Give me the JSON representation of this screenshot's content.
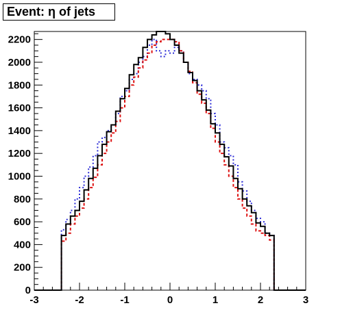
{
  "chart_data": {
    "type": "histogram",
    "title": "Event: η of jets",
    "xlabel": "",
    "ylabel": "",
    "xlim": [
      -3,
      3
    ],
    "ylim": [
      0,
      2270
    ],
    "xticks": [
      "-3",
      "-2",
      "-1",
      "0",
      "1",
      "2",
      "3"
    ],
    "yticks": [
      "0",
      "200",
      "400",
      "600",
      "800",
      "1000",
      "1200",
      "1400",
      "1600",
      "1800",
      "2000",
      "2200"
    ],
    "grid": false,
    "legend": "none",
    "bin_edges": [
      -3.0,
      -2.4,
      -2.3,
      -2.2,
      -2.1,
      -2.0,
      -1.9,
      -1.8,
      -1.7,
      -1.6,
      -1.5,
      -1.4,
      -1.3,
      -1.2,
      -1.1,
      -1.0,
      -0.9,
      -0.8,
      -0.7,
      -0.6,
      -0.5,
      -0.4,
      -0.3,
      -0.2,
      -0.1,
      0.0,
      0.1,
      0.2,
      0.3,
      0.4,
      0.5,
      0.6,
      0.7,
      0.8,
      0.9,
      1.0,
      1.1,
      1.2,
      1.3,
      1.4,
      1.5,
      1.6,
      1.7,
      1.8,
      1.9,
      2.0,
      2.1,
      2.2,
      2.3,
      2.4,
      3.0
    ],
    "series": [
      {
        "style": "solid",
        "color": "#000000",
        "values": [
          0,
          480,
          580,
          650,
          700,
          780,
          880,
          980,
          1070,
          1180,
          1280,
          1390,
          1450,
          1570,
          1680,
          1770,
          1890,
          1980,
          2040,
          2130,
          2200,
          2240,
          2270,
          2270,
          2250,
          2200,
          2150,
          2080,
          2000,
          1910,
          1840,
          1750,
          1670,
          1580,
          1460,
          1380,
          1280,
          1170,
          1090,
          980,
          890,
          800,
          740,
          680,
          590,
          560,
          500,
          480,
          0
        ]
      },
      {
        "style": "dotted",
        "color": "#2b2bd6",
        "values": [
          0,
          530,
          620,
          700,
          800,
          900,
          1000,
          1080,
          1180,
          1300,
          1340,
          1400,
          1450,
          1550,
          1700,
          1750,
          1850,
          1900,
          2000,
          2050,
          2150,
          2200,
          2100,
          2050,
          2100,
          2080,
          2130,
          2100,
          2000,
          1900,
          1850,
          1800,
          1750,
          1680,
          1550,
          1450,
          1300,
          1250,
          1180,
          1100,
          950,
          870,
          780,
          700,
          630,
          600,
          500,
          480,
          0
        ]
      },
      {
        "style": "dashed",
        "color": "#dd1111",
        "values": [
          0,
          430,
          500,
          580,
          650,
          720,
          800,
          900,
          990,
          1100,
          1200,
          1300,
          1380,
          1480,
          1600,
          1700,
          1800,
          1870,
          1950,
          2020,
          2080,
          2150,
          2180,
          2200,
          2200,
          2200,
          2180,
          2100,
          2000,
          1920,
          1820,
          1720,
          1640,
          1550,
          1420,
          1300,
          1200,
          1100,
          1000,
          900,
          800,
          720,
          650,
          580,
          520,
          500,
          480,
          440,
          0
        ]
      }
    ]
  }
}
